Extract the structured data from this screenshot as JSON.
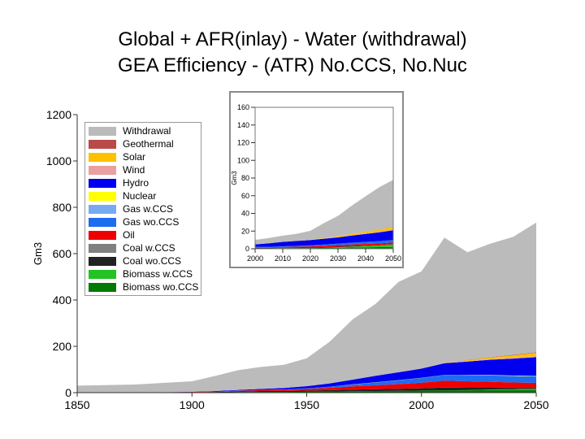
{
  "title_line1": "Global + AFR(inlay) - Water (withdrawal)",
  "title_line2": "GEA Efficiency - (ATR) No.CCS, No.Nuc",
  "chart_data": [
    {
      "type": "area",
      "stacked": true,
      "ylabel": "Gm3",
      "xlim": [
        1850,
        2050
      ],
      "ylim": [
        0,
        1200
      ],
      "x_ticks": [
        1850,
        1900,
        1950,
        2000,
        2050
      ],
      "y_ticks": [
        0,
        200,
        400,
        600,
        800,
        1000,
        1200
      ],
      "x": [
        1850,
        1875,
        1900,
        1910,
        1920,
        1930,
        1940,
        1950,
        1960,
        1970,
        1980,
        1990,
        2000,
        2010,
        2020,
        2030,
        2040,
        2050
      ],
      "series": [
        {
          "name": "Biomass wo.CCS",
          "color": "#007a00",
          "values": [
            0,
            0,
            1,
            1,
            2,
            3,
            3,
            4,
            5,
            6,
            7,
            8,
            9,
            10,
            10,
            11,
            11,
            12
          ]
        },
        {
          "name": "Biomass w.CCS",
          "color": "#22c322",
          "values": [
            0,
            0,
            0,
            0,
            0,
            0,
            0,
            0,
            0,
            0,
            0,
            0,
            0,
            0,
            1,
            2,
            3,
            4
          ]
        },
        {
          "name": "Coal wo.CCS",
          "color": "#222222",
          "values": [
            0,
            0,
            1,
            2,
            3,
            4,
            4,
            5,
            6,
            7,
            8,
            9,
            10,
            12,
            10,
            8,
            6,
            4
          ]
        },
        {
          "name": "Coal w.CCS",
          "color": "#808080",
          "values": [
            0,
            0,
            0,
            0,
            0,
            0,
            0,
            0,
            0,
            0,
            0,
            0,
            0,
            0,
            0,
            0,
            0,
            0
          ]
        },
        {
          "name": "Oil",
          "color": "#ee0000",
          "values": [
            0,
            0,
            1,
            2,
            3,
            4,
            5,
            7,
            10,
            14,
            17,
            20,
            24,
            30,
            28,
            26,
            24,
            22
          ]
        },
        {
          "name": "Gas wo.CCS",
          "color": "#1e6cf0",
          "values": [
            0,
            0,
            0,
            0,
            1,
            1,
            2,
            3,
            5,
            8,
            12,
            16,
            20,
            24,
            26,
            27,
            28,
            28
          ]
        },
        {
          "name": "Gas w.CCS",
          "color": "#78aaf0",
          "values": [
            0,
            0,
            0,
            0,
            0,
            0,
            0,
            0,
            0,
            0,
            0,
            0,
            0,
            0,
            0,
            1,
            1,
            2
          ]
        },
        {
          "name": "Nuclear",
          "color": "#ffff00",
          "values": [
            0,
            0,
            0,
            0,
            0,
            0,
            0,
            0,
            0,
            1,
            1,
            1,
            1,
            1,
            1,
            1,
            1,
            1
          ]
        },
        {
          "name": "Hydro",
          "color": "#0000ee",
          "values": [
            0,
            0,
            1,
            2,
            3,
            4,
            6,
            9,
            14,
            20,
            28,
            34,
            40,
            50,
            58,
            66,
            73,
            80
          ]
        },
        {
          "name": "Wind",
          "color": "#e8a0a0",
          "values": [
            0,
            0,
            0,
            0,
            0,
            0,
            0,
            0,
            0,
            0,
            0,
            0,
            0,
            1,
            2,
            3,
            4,
            5
          ]
        },
        {
          "name": "Solar",
          "color": "#ffc000",
          "values": [
            0,
            0,
            0,
            0,
            0,
            0,
            0,
            0,
            0,
            0,
            0,
            0,
            0,
            1,
            4,
            7,
            10,
            14
          ]
        },
        {
          "name": "Geothermal",
          "color": "#b94a48",
          "values": [
            0,
            0,
            0,
            0,
            0,
            0,
            0,
            0,
            0,
            0,
            0,
            0,
            0,
            0,
            1,
            1,
            2,
            2
          ]
        },
        {
          "name": "Withdrawal",
          "color": "#bbbbbb",
          "values": [
            30,
            35,
            45,
            65,
            85,
            95,
            100,
            120,
            180,
            260,
            310,
            390,
            420,
            540,
            465,
            490,
            510,
            560
          ]
        }
      ]
    },
    {
      "type": "area",
      "stacked": true,
      "ylabel": "Gm3",
      "xlim": [
        2000,
        2050
      ],
      "ylim": [
        0,
        160
      ],
      "x_ticks": [
        2000,
        2010,
        2020,
        2030,
        2040,
        2050
      ],
      "y_ticks": [
        0,
        20,
        40,
        60,
        80,
        100,
        120,
        140,
        160
      ],
      "x": [
        2000,
        2005,
        2010,
        2015,
        2020,
        2025,
        2030,
        2035,
        2040,
        2045,
        2050
      ],
      "series": [
        {
          "name": "Biomass wo.CCS",
          "color": "#007a00",
          "values": [
            0.5,
            0.5,
            0.6,
            0.7,
            0.8,
            1,
            1.2,
            1.4,
            1.6,
            1.8,
            2
          ]
        },
        {
          "name": "Biomass w.CCS",
          "color": "#22c322",
          "values": [
            0,
            0,
            0,
            0,
            0,
            0.2,
            0.5,
            1,
            1.5,
            2,
            3
          ]
        },
        {
          "name": "Coal wo.CCS",
          "color": "#222222",
          "values": [
            0.5,
            0.5,
            0.6,
            0.6,
            0.7,
            0.7,
            0.6,
            0.5,
            0.4,
            0.3,
            0.2
          ]
        },
        {
          "name": "Coal w.CCS",
          "color": "#808080",
          "values": [
            0,
            0,
            0,
            0,
            0,
            0,
            0,
            0,
            0,
            0,
            0
          ]
        },
        {
          "name": "Oil",
          "color": "#ee0000",
          "values": [
            0.5,
            0.6,
            0.8,
            1,
            1.2,
            1.5,
            1.8,
            2,
            2,
            2,
            2
          ]
        },
        {
          "name": "Gas wo.CCS",
          "color": "#1e6cf0",
          "values": [
            0.5,
            0.6,
            0.8,
            1,
            1.2,
            1.5,
            1.8,
            2,
            2.3,
            2.5,
            2.8
          ]
        },
        {
          "name": "Gas w.CCS",
          "color": "#78aaf0",
          "values": [
            0,
            0,
            0,
            0,
            0,
            0,
            0,
            0,
            0,
            0,
            0
          ]
        },
        {
          "name": "Nuclear",
          "color": "#ffff00",
          "values": [
            0,
            0,
            0,
            0,
            0,
            0,
            0,
            0,
            0,
            0,
            0
          ]
        },
        {
          "name": "Hydro",
          "color": "#0000ee",
          "values": [
            3,
            4,
            5,
            5.5,
            6,
            6.5,
            7,
            8,
            9,
            10,
            11
          ]
        },
        {
          "name": "Wind",
          "color": "#e8a0a0",
          "values": [
            0,
            0,
            0,
            0,
            0.1,
            0.2,
            0.3,
            0.4,
            0.5,
            0.6,
            0.7
          ]
        },
        {
          "name": "Solar",
          "color": "#ffc000",
          "values": [
            0,
            0,
            0,
            0.1,
            0.3,
            0.6,
            1,
            1.5,
            2,
            2.5,
            3
          ]
        },
        {
          "name": "Geothermal",
          "color": "#b94a48",
          "values": [
            0,
            0,
            0,
            0,
            0,
            0,
            0,
            0,
            0.1,
            0.1,
            0.2
          ]
        },
        {
          "name": "Withdrawal",
          "color": "#bbbbbb",
          "values": [
            5,
            6,
            7,
            8,
            10,
            17,
            23,
            32,
            40,
            48,
            53
          ]
        }
      ]
    }
  ],
  "legend": [
    {
      "label": "Withdrawal",
      "color": "#bbbbbb"
    },
    {
      "label": "Geothermal",
      "color": "#b94a48"
    },
    {
      "label": "Solar",
      "color": "#ffc000"
    },
    {
      "label": "Wind",
      "color": "#e8a0a0"
    },
    {
      "label": "Hydro",
      "color": "#0000ee"
    },
    {
      "label": "Nuclear",
      "color": "#ffff00"
    },
    {
      "label": "Gas w.CCS",
      "color": "#78aaf0"
    },
    {
      "label": "Gas wo.CCS",
      "color": "#1e6cf0"
    },
    {
      "label": "Oil",
      "color": "#ee0000"
    },
    {
      "label": "Coal w.CCS",
      "color": "#808080"
    },
    {
      "label": "Coal wo.CCS",
      "color": "#222222"
    },
    {
      "label": "Biomass w.CCS",
      "color": "#22c322"
    },
    {
      "label": "Biomass wo.CCS",
      "color": "#007a00"
    }
  ]
}
